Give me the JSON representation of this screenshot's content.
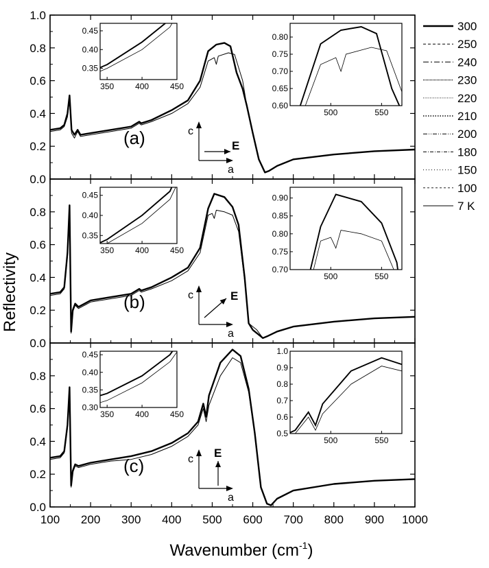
{
  "chart_data": {
    "type": "line",
    "title": "",
    "xlabel": "Wavenumber (cm",
    "xlabel_sup": "-1",
    "xlabel_close": ")",
    "ylabel": "Reflectivity",
    "xlim": [
      100,
      1000
    ],
    "x_ticks": [
      100,
      200,
      300,
      400,
      500,
      600,
      700,
      800,
      900,
      1000
    ],
    "legend": {
      "position": "right",
      "entries": [
        "300",
        "250",
        "240",
        "230",
        "220",
        "210",
        "200",
        "180",
        "150",
        "100",
        "7 K"
      ],
      "styles": [
        "bold-solid",
        "dashed",
        "dash-dot",
        "dotted-dense",
        "dotted-fine",
        "dotted-bold",
        "dash-dot-dot",
        "dash-dot-fine",
        "dotted",
        "dashed-light",
        "thin-solid"
      ]
    },
    "panels": [
      {
        "label": "(a)",
        "ylim": [
          0.0,
          1.0
        ],
        "y_ticks": [
          0.0,
          0.2,
          0.4,
          0.6,
          0.8,
          1.0
        ],
        "orientation": {
          "c": "c",
          "a": "a",
          "E": "E",
          "e_direction": "a"
        },
        "series": [
          {
            "name": "300",
            "x": [
              100,
              125,
              135,
              143,
              148,
              153,
              160,
              168,
              175,
              200,
              250,
              300,
              320,
              325,
              350,
              400,
              440,
              470,
              490,
              510,
              530,
              545,
              560,
              575,
              585,
              600,
              615,
              630,
              640,
              660,
              700,
              800,
              900,
              1000
            ],
            "y": [
              0.3,
              0.31,
              0.33,
              0.4,
              0.51,
              0.3,
              0.27,
              0.3,
              0.27,
              0.28,
              0.3,
              0.32,
              0.35,
              0.34,
              0.36,
              0.42,
              0.48,
              0.6,
              0.78,
              0.82,
              0.83,
              0.81,
              0.65,
              0.55,
              0.45,
              0.28,
              0.12,
              0.04,
              0.05,
              0.08,
              0.12,
              0.15,
              0.17,
              0.18
            ]
          },
          {
            "name": "7 K",
            "x": [
              100,
              125,
              135,
              143,
              148,
              153,
              160,
              168,
              175,
              200,
              250,
              300,
              320,
              325,
              350,
              400,
              440,
              470,
              490,
              505,
              510,
              515,
              540,
              555,
              575,
              585,
              600,
              615,
              630,
              640,
              660,
              700,
              800,
              900,
              1000
            ],
            "y": [
              0.29,
              0.3,
              0.32,
              0.38,
              0.49,
              0.28,
              0.25,
              0.29,
              0.26,
              0.27,
              0.29,
              0.31,
              0.34,
              0.33,
              0.35,
              0.4,
              0.46,
              0.56,
              0.72,
              0.74,
              0.7,
              0.75,
              0.77,
              0.76,
              0.6,
              0.45,
              0.28,
              0.12,
              0.04,
              0.05,
              0.08,
              0.12,
              0.15,
              0.17,
              0.18
            ]
          }
        ],
        "inset_left": {
          "xlim": [
            340,
            450
          ],
          "ylim": [
            0.32,
            0.47
          ],
          "x_ticks": [
            350,
            400,
            450
          ],
          "y_ticks": [
            0.35,
            0.4,
            0.45
          ]
        },
        "inset_right": {
          "xlim": [
            460,
            570
          ],
          "ylim": [
            0.6,
            0.84
          ],
          "x_ticks": [
            500,
            550
          ],
          "y_ticks": [
            0.6,
            0.65,
            0.7,
            0.75,
            0.8
          ]
        }
      },
      {
        "label": "(b)",
        "ylim": [
          0.0,
          1.0
        ],
        "y_ticks": [
          0.0,
          0.2,
          0.4,
          0.6,
          0.8
        ],
        "orientation": {
          "c": "c",
          "a": "a",
          "E": "E",
          "e_direction": "diagonal"
        },
        "series": [
          {
            "name": "300",
            "x": [
              100,
              125,
              135,
              143,
              148,
              152,
              156,
              162,
              170,
              200,
              250,
              300,
              320,
              325,
              350,
              400,
              440,
              470,
              490,
              505,
              530,
              550,
              565,
              580,
              590,
              600,
              610,
              625,
              635,
              660,
              700,
              800,
              900,
              1000
            ],
            "y": [
              0.3,
              0.31,
              0.34,
              0.55,
              0.84,
              0.07,
              0.2,
              0.24,
              0.22,
              0.26,
              0.28,
              0.3,
              0.33,
              0.32,
              0.34,
              0.4,
              0.46,
              0.58,
              0.82,
              0.91,
              0.89,
              0.83,
              0.72,
              0.4,
              0.12,
              0.08,
              0.06,
              0.03,
              0.04,
              0.07,
              0.1,
              0.13,
              0.15,
              0.16
            ]
          },
          {
            "name": "7 K",
            "x": [
              100,
              125,
              135,
              143,
              148,
              152,
              156,
              162,
              170,
              200,
              250,
              300,
              320,
              325,
              350,
              400,
              440,
              470,
              490,
              500,
              505,
              510,
              530,
              550,
              565,
              580,
              590,
              600,
              610,
              625,
              635,
              660,
              700,
              800,
              900,
              1000
            ],
            "y": [
              0.29,
              0.3,
              0.33,
              0.53,
              0.82,
              0.06,
              0.19,
              0.23,
              0.21,
              0.25,
              0.27,
              0.29,
              0.32,
              0.31,
              0.33,
              0.38,
              0.44,
              0.55,
              0.78,
              0.79,
              0.76,
              0.81,
              0.8,
              0.78,
              0.68,
              0.38,
              0.12,
              0.1,
              0.08,
              0.03,
              0.04,
              0.07,
              0.1,
              0.13,
              0.15,
              0.16
            ]
          }
        ],
        "inset_left": {
          "xlim": [
            340,
            450
          ],
          "ylim": [
            0.33,
            0.47
          ],
          "x_ticks": [
            350,
            400,
            450
          ],
          "y_ticks": [
            0.35,
            0.4,
            0.45
          ]
        },
        "inset_right": {
          "xlim": [
            460,
            570
          ],
          "ylim": [
            0.7,
            0.93
          ],
          "x_ticks": [
            500,
            550
          ],
          "y_ticks": [
            0.7,
            0.75,
            0.8,
            0.85,
            0.9
          ]
        }
      },
      {
        "label": "(c)",
        "ylim": [
          0.0,
          1.0
        ],
        "y_ticks": [
          0.0,
          0.2,
          0.4,
          0.6,
          0.8
        ],
        "orientation": {
          "c": "c",
          "a": "a",
          "E": "E",
          "e_direction": "c"
        },
        "series": [
          {
            "name": "300",
            "x": [
              100,
              125,
              135,
              143,
              148,
              152,
              156,
              162,
              170,
              200,
              250,
              300,
              350,
              400,
              440,
              465,
              478,
              485,
              492,
              520,
              550,
              570,
              590,
              605,
              620,
              635,
              645,
              660,
              700,
              800,
              900,
              1000
            ],
            "y": [
              0.3,
              0.31,
              0.34,
              0.5,
              0.73,
              0.13,
              0.22,
              0.26,
              0.25,
              0.27,
              0.29,
              0.31,
              0.34,
              0.39,
              0.45,
              0.52,
              0.63,
              0.55,
              0.68,
              0.88,
              0.96,
              0.92,
              0.72,
              0.45,
              0.12,
              0.02,
              0.01,
              0.05,
              0.1,
              0.14,
              0.16,
              0.17
            ]
          },
          {
            "name": "7 K",
            "x": [
              100,
              125,
              135,
              143,
              148,
              152,
              156,
              162,
              170,
              200,
              250,
              300,
              350,
              400,
              440,
              465,
              478,
              485,
              492,
              520,
              550,
              570,
              590,
              605,
              620,
              635,
              645,
              660,
              700,
              800,
              900,
              1000
            ],
            "y": [
              0.29,
              0.3,
              0.33,
              0.48,
              0.71,
              0.12,
              0.21,
              0.25,
              0.24,
              0.26,
              0.28,
              0.29,
              0.32,
              0.37,
              0.43,
              0.5,
              0.6,
              0.52,
              0.62,
              0.8,
              0.91,
              0.88,
              0.7,
              0.44,
              0.12,
              0.02,
              0.01,
              0.05,
              0.1,
              0.14,
              0.16,
              0.17
            ]
          }
        ],
        "inset_left": {
          "xlim": [
            340,
            450
          ],
          "ylim": [
            0.3,
            0.46
          ],
          "x_ticks": [
            350,
            400,
            450
          ],
          "y_ticks": [
            0.3,
            0.35,
            0.4,
            0.45
          ]
        },
        "inset_right": {
          "xlim": [
            460,
            570
          ],
          "ylim": [
            0.5,
            1.0
          ],
          "x_ticks": [
            500,
            550
          ],
          "y_ticks": [
            0.5,
            0.6,
            0.7,
            0.8,
            0.9,
            1.0
          ]
        }
      }
    ]
  }
}
